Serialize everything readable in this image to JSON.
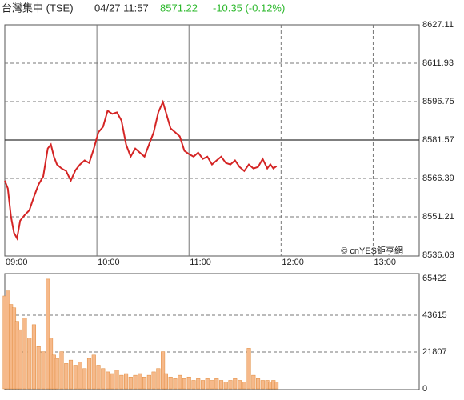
{
  "header": {
    "name": "台灣集中 (TSE)",
    "time": "04/27 11:57",
    "price": "8571.22",
    "change": "-10.35 (-0.12%)"
  },
  "chart_data": [
    {
      "type": "line",
      "color": "#d42424",
      "annotation": "© cnYES鉅亨網",
      "x": [
        0,
        2,
        4,
        6,
        8,
        10,
        13,
        16,
        19,
        22,
        25,
        28,
        30,
        32,
        34,
        37,
        40,
        43,
        46,
        49,
        52,
        55,
        58,
        61,
        64,
        67,
        70,
        73,
        76,
        79,
        82,
        85,
        88,
        91,
        94,
        97,
        100,
        103,
        105,
        108,
        111,
        114,
        117,
        120,
        123,
        126,
        129,
        132,
        135,
        138,
        141,
        144,
        147,
        150,
        153,
        156,
        159,
        162,
        165,
        168,
        171,
        173,
        175,
        177
      ],
      "values": [
        8565.5,
        8562.4,
        8551.3,
        8544.9,
        8542.7,
        8549.7,
        8551.9,
        8553.8,
        8559.2,
        8564.0,
        8567.1,
        8578.2,
        8579.8,
        8575.0,
        8571.9,
        8570.3,
        8569.3,
        8565.5,
        8569.6,
        8571.9,
        8573.5,
        8572.5,
        8578.2,
        8584.6,
        8586.8,
        8593.1,
        8591.9,
        8592.5,
        8589.3,
        8579.8,
        8575.0,
        8578.2,
        8576.6,
        8575.0,
        8579.8,
        8584.6,
        8592.5,
        8596.6,
        8592.5,
        8586.2,
        8584.6,
        8583.0,
        8577.3,
        8576.0,
        8575.0,
        8576.6,
        8574.1,
        8575.0,
        8571.9,
        8573.5,
        8575.0,
        8572.5,
        8571.9,
        8573.5,
        8570.9,
        8569.3,
        8571.9,
        8570.3,
        8570.9,
        8574.1,
        8570.3,
        8572.0,
        8570.3,
        8571.22
      ],
      "xlim": [
        0,
        270
      ],
      "xticks": [
        {
          "value": 0,
          "label": "09:00"
        },
        {
          "value": 60,
          "label": "10:00"
        },
        {
          "value": 120,
          "label": "11:00"
        },
        {
          "value": 180,
          "label": "12:00"
        },
        {
          "value": 240,
          "label": "13:00"
        }
      ],
      "ylim": [
        8536.03,
        8627.11
      ],
      "yticks": [
        8536.03,
        8551.21,
        8566.39,
        8581.57,
        8596.75,
        8611.93,
        8627.11
      ],
      "reference_line": 8581.57
    },
    {
      "type": "bar",
      "color": "#f6b98a",
      "edge_color": "#e08a3c",
      "x": [
        0,
        2,
        4,
        6,
        8,
        10,
        13,
        16,
        19,
        22,
        25,
        28,
        30,
        32,
        34,
        37,
        40,
        43,
        46,
        49,
        52,
        55,
        58,
        61,
        64,
        67,
        70,
        73,
        76,
        79,
        82,
        85,
        88,
        91,
        94,
        97,
        100,
        103,
        105,
        108,
        111,
        114,
        117,
        120,
        123,
        126,
        129,
        132,
        135,
        138,
        141,
        144,
        147,
        150,
        153,
        156,
        159,
        162,
        165,
        168,
        171,
        173,
        175,
        177
      ],
      "values": [
        55000,
        58000,
        50000,
        48000,
        40000,
        35000,
        42000,
        30000,
        38000,
        25000,
        22000,
        65000,
        30000,
        20000,
        18000,
        22000,
        15000,
        17000,
        14000,
        16000,
        12000,
        18000,
        20000,
        14000,
        12000,
        10000,
        9000,
        11000,
        8000,
        9000,
        7000,
        8000,
        9000,
        7000,
        8000,
        10000,
        12000,
        22000,
        9000,
        7000,
        6000,
        8000,
        6000,
        7000,
        5000,
        6000,
        5000,
        6000,
        5000,
        6000,
        5000,
        4000,
        5000,
        6000,
        5000,
        4000,
        24000,
        8000,
        6000,
        5000,
        5000,
        4000,
        5000,
        4000
      ],
      "xlim": [
        0,
        270
      ],
      "ylim": [
        0,
        65422
      ],
      "yticks": [
        0,
        21807,
        43615,
        65422
      ]
    }
  ]
}
